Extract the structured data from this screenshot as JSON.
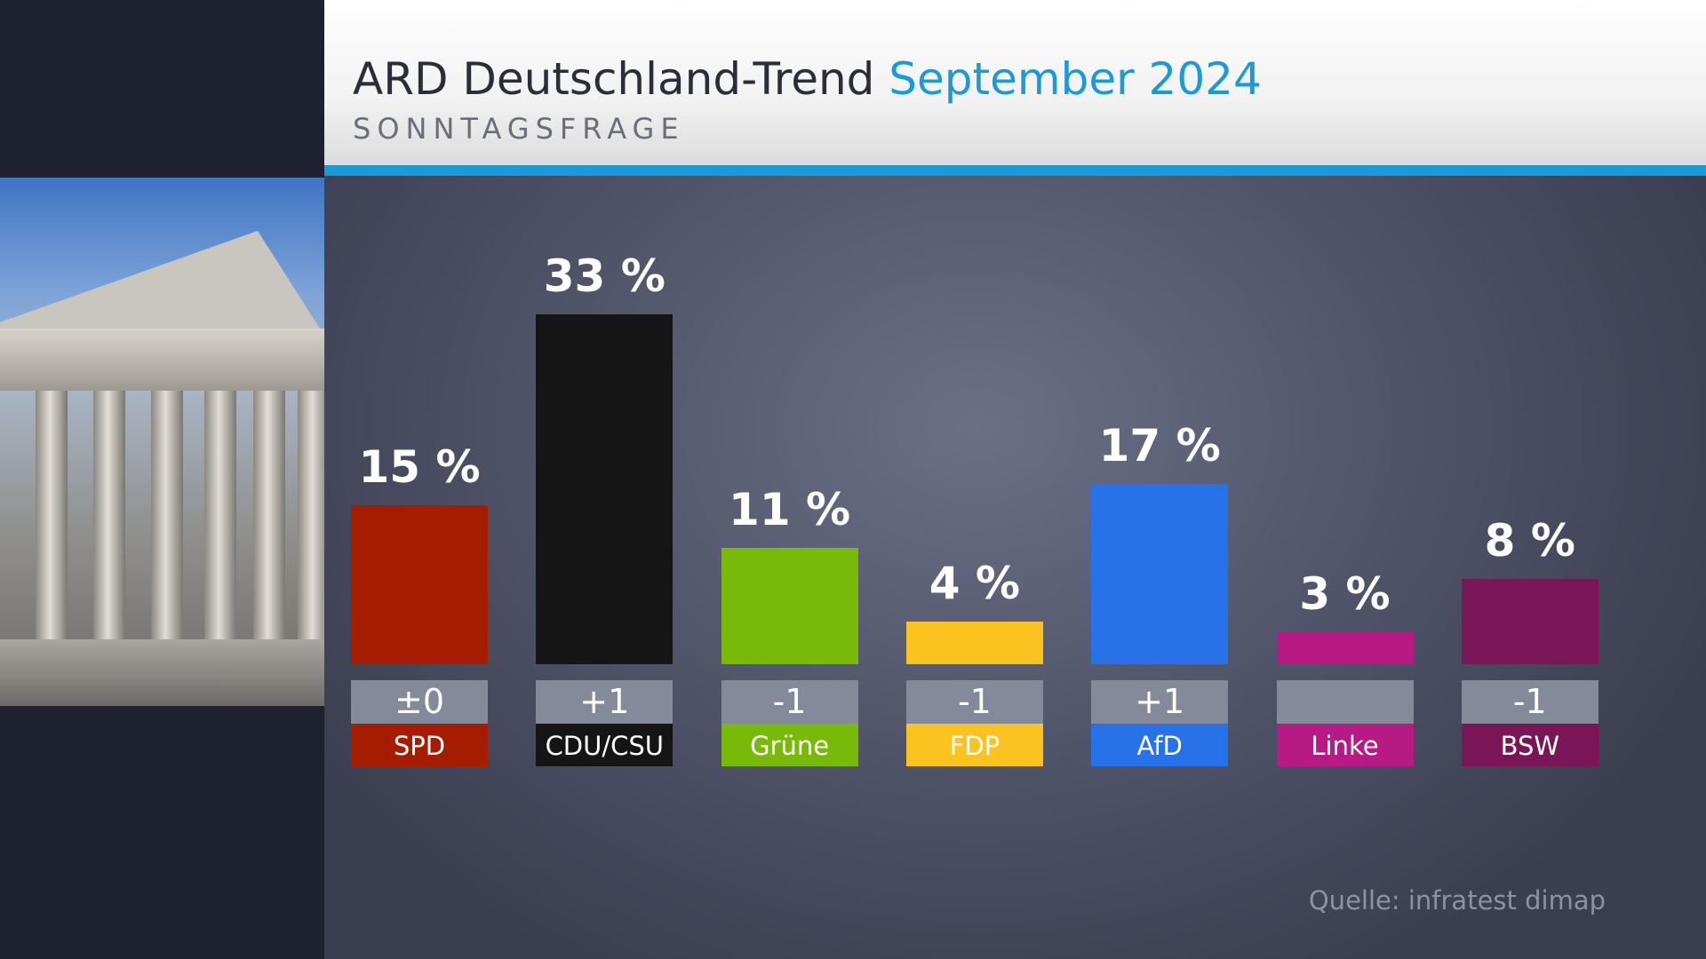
{
  "header": {
    "title": "ARD Deutschland-Trend",
    "title_accent": "September 2024",
    "subtitle": "SONNTAGSFRAGE"
  },
  "chart_data": {
    "type": "bar",
    "title": "ARD Deutschland-Trend September 2024",
    "subtitle": "SONNTAGSFRAGE",
    "categories": [
      "SPD",
      "CDU/CSU",
      "Grüne",
      "FDP",
      "AfD",
      "Linke",
      "BSW"
    ],
    "values": [
      15,
      33,
      11,
      4,
      17,
      3,
      8
    ],
    "value_labels": [
      "15 %",
      "33 %",
      "11 %",
      "4 %",
      "17 %",
      "3 %",
      "8 %"
    ],
    "changes": [
      "±0",
      "+1",
      "-1",
      "-1",
      "+1",
      "",
      "-1"
    ],
    "colors": [
      "#a51c00",
      "#151515",
      "#79b90a",
      "#fbc320",
      "#2772e8",
      "#b71a85",
      "#7a1658"
    ],
    "unit": "%",
    "ylim": [
      0,
      33
    ],
    "grid": false
  },
  "source": "Quelle: infratest dimap",
  "colors": {
    "accent": "#1d9ad6",
    "change_box": "#858a9b"
  }
}
